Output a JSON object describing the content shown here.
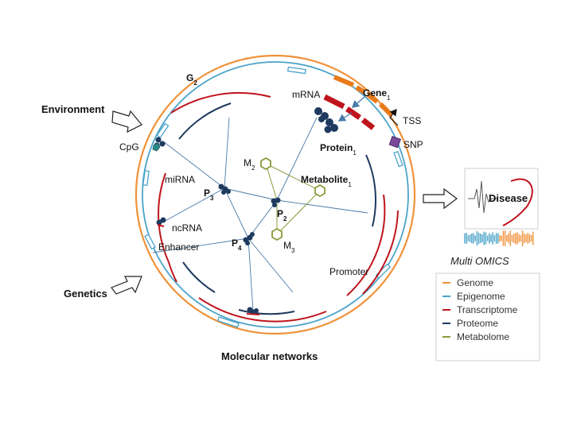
{
  "labels": {
    "g2": "G",
    "g2_sub": "2",
    "mrna": "mRNA",
    "gene": "Gene",
    "gene_sub": "1",
    "tss": "TSS",
    "snp": "SNP",
    "protein": "Protein",
    "protein_sub": "1",
    "cpg": "CpG",
    "m2": "M",
    "m2_sub": "2",
    "metabolite": "Metabolite",
    "metabolite_sub": "1",
    "mirna": "miRNA",
    "p3": "P",
    "p3_sub": "3",
    "p2": "P",
    "p2_sub": "2",
    "p4": "P",
    "p4_sub": "4",
    "m3": "M",
    "m3_sub": "3",
    "ncrna": "ncRNA",
    "enhancer": "Enhancer",
    "promoter": "Promoter",
    "environment": "Environment",
    "genetics": "Genetics",
    "molecular_networks": "Molecular networks",
    "disease": "Disease",
    "multi_omics": "Multi OMICS"
  },
  "legend": [
    {
      "label": "Genome",
      "color": "#f0923a"
    },
    {
      "label": "Epigenome",
      "color": "#4aa3c8"
    },
    {
      "label": "Transcriptome",
      "color": "#c0141c"
    },
    {
      "label": "Proteome",
      "color": "#1f3a5f"
    },
    {
      "label": "Metabolome",
      "color": "#8a9a3a"
    }
  ],
  "colors": {
    "genome": "#f0923a",
    "epigenome": "#4aa3c8",
    "transcriptome": "#c0141c",
    "proteome": "#1f3a5f",
    "metabolome": "#8a9a3a",
    "network": "#4a7aa8"
  }
}
